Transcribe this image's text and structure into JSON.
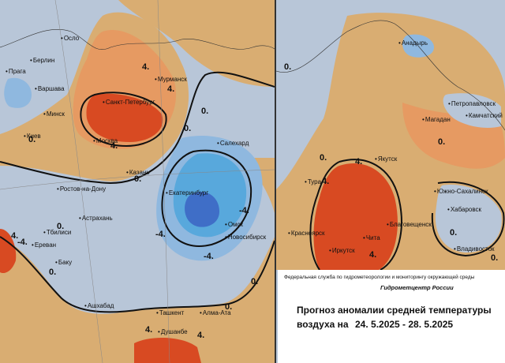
{
  "colors": {
    "strong_warm": "#d84a22",
    "warm": "#e69a62",
    "slight_warm": "#d9ad72",
    "slight_cold": "#b8c6d8",
    "cold": "#8fb8df",
    "strong_cold": "#58a8dc",
    "very_cold": "#3f6ec7"
  },
  "left_map": {
    "cities": [
      {
        "name": "Осло"
      },
      {
        "name": "Берлин"
      },
      {
        "name": "Прага"
      },
      {
        "name": "Варшава"
      },
      {
        "name": "Минск"
      },
      {
        "name": "Санкт-Петербург"
      },
      {
        "name": "Мурманск"
      },
      {
        "name": "Киев"
      },
      {
        "name": "Москва"
      },
      {
        "name": "Салехард"
      },
      {
        "name": "Казань"
      },
      {
        "name": "Ростов-на-Дону"
      },
      {
        "name": "Екатеринбург"
      },
      {
        "name": "Астрахань"
      },
      {
        "name": "Тбилиси"
      },
      {
        "name": "Ереван"
      },
      {
        "name": "Омск"
      },
      {
        "name": "Новосибирск"
      },
      {
        "name": "Баку"
      },
      {
        "name": "Ашхабад"
      },
      {
        "name": "Ташкент"
      },
      {
        "name": "Алма-Ата"
      },
      {
        "name": "Душанбе"
      }
    ],
    "isoline_labels": [
      "4.",
      "4.",
      "4.",
      "0.",
      "0.",
      "0.",
      "0.",
      "0.",
      "-4.",
      "-4.",
      "-4.",
      "4.",
      "-4.",
      "0.",
      "0.",
      "0.",
      "4.",
      "4."
    ]
  },
  "right_map": {
    "cities": [
      {
        "name": "Анадырь"
      },
      {
        "name": "Петропавловск"
      },
      {
        "name": "Магадан"
      },
      {
        "name": "Камчатский"
      },
      {
        "name": "Якутск"
      },
      {
        "name": "Тура"
      },
      {
        "name": "Южно-Сахалинск"
      },
      {
        "name": "Хабаровск"
      },
      {
        "name": "Благовещенск"
      },
      {
        "name": "Красноярск"
      },
      {
        "name": "Чита"
      },
      {
        "name": "Иркутск"
      },
      {
        "name": "Владивосток"
      }
    ],
    "isoline_labels": [
      "0.",
      "0.",
      "4.",
      "4.",
      "0.",
      "0.",
      "4.",
      "0."
    ]
  },
  "info": {
    "agency": "Федеральная служба по гидрометеорологии и мониторингу окружающей среды",
    "center": "Гидрометцентр России",
    "title_line1": "Прогноз аномалии средней температуры",
    "title_line2": "воздуха на",
    "date_range": "24. 5.2025 - 28. 5.2025"
  }
}
